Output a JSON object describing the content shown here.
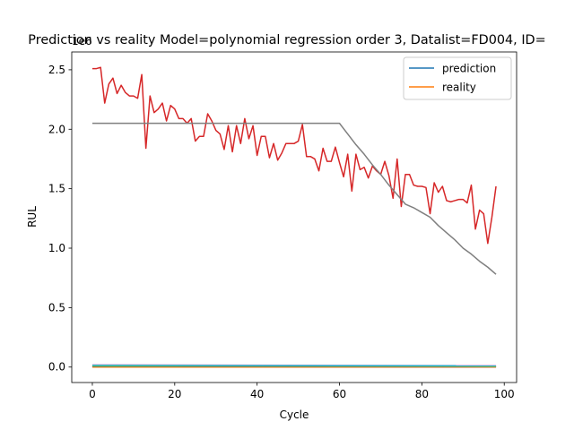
{
  "chart_data": {
    "type": "line",
    "title": "Prediction vs reality Model=polynomial regression order 3, Datalist=FD004, ID=",
    "xlabel": "Cycle",
    "ylabel": "RUL",
    "offset_label": "1e6",
    "xlim": [
      -5,
      103
    ],
    "ylim": [
      -0.13,
      2.65
    ],
    "xticks": [
      0,
      20,
      40,
      60,
      80,
      100
    ],
    "yticks": [
      0.0,
      0.5,
      1.0,
      1.5,
      2.0,
      2.5
    ],
    "xtick_labels": [
      "0",
      "20",
      "40",
      "60",
      "80",
      "100"
    ],
    "ytick_labels": [
      "0.0",
      "0.5",
      "1.0",
      "1.5",
      "2.0",
      "2.5"
    ],
    "legend": {
      "placement": "upper right",
      "entries": [
        {
          "name": "prediction",
          "color": "#1f77b4"
        },
        {
          "name": "reality",
          "color": "#ff7f0e"
        }
      ]
    },
    "series": [
      {
        "color": "#d62728",
        "x": [
          0,
          1,
          2,
          3,
          4,
          5,
          6,
          7,
          8,
          9,
          10,
          11,
          12,
          13,
          14,
          15,
          16,
          17,
          18,
          19,
          20,
          21,
          22,
          23,
          24,
          25,
          26,
          27,
          28,
          29,
          30,
          31,
          32,
          33,
          34,
          35,
          36,
          37,
          38,
          39,
          40,
          41,
          42,
          43,
          44,
          45,
          46,
          47,
          48,
          49,
          50,
          51,
          52,
          53,
          54,
          55,
          56,
          57,
          58,
          59,
          60,
          61,
          62,
          63,
          64,
          65,
          66,
          67,
          68,
          69,
          70,
          71,
          72,
          73,
          74,
          75,
          76,
          77,
          78,
          79,
          80,
          81,
          82,
          83,
          84,
          85,
          86,
          87,
          88,
          89,
          90,
          91,
          92,
          93,
          94,
          95,
          96,
          97,
          98
        ],
        "y": [
          2.51,
          2.51,
          2.52,
          2.22,
          2.38,
          2.43,
          2.3,
          2.37,
          2.31,
          2.28,
          2.28,
          2.26,
          2.46,
          1.84,
          2.28,
          2.14,
          2.17,
          2.22,
          2.07,
          2.2,
          2.17,
          2.09,
          2.09,
          2.05,
          2.09,
          1.9,
          1.94,
          1.94,
          2.13,
          2.07,
          1.99,
          1.96,
          1.83,
          2.03,
          1.81,
          2.03,
          1.88,
          2.09,
          1.92,
          2.03,
          1.78,
          1.94,
          1.94,
          1.76,
          1.88,
          1.74,
          1.8,
          1.88,
          1.88,
          1.88,
          1.9,
          2.04,
          1.77,
          1.77,
          1.75,
          1.65,
          1.84,
          1.73,
          1.73,
          1.85,
          1.72,
          1.6,
          1.79,
          1.48,
          1.79,
          1.66,
          1.68,
          1.59,
          1.69,
          1.65,
          1.62,
          1.73,
          1.61,
          1.42,
          1.75,
          1.35,
          1.62,
          1.62,
          1.53,
          1.52,
          1.52,
          1.51,
          1.29,
          1.55,
          1.47,
          1.52,
          1.4,
          1.39,
          1.4,
          1.41,
          1.41,
          1.38,
          1.53,
          1.16,
          1.32,
          1.29,
          1.04,
          1.26,
          1.52
        ]
      },
      {
        "color": "#7f7f7f",
        "x": [
          0,
          60,
          62,
          64,
          66,
          68,
          70,
          72,
          74,
          76,
          78,
          80,
          82,
          84,
          86,
          88,
          90,
          92,
          94,
          96,
          98
        ],
        "y": [
          2.05,
          2.05,
          1.96,
          1.87,
          1.79,
          1.7,
          1.62,
          1.53,
          1.45,
          1.37,
          1.34,
          1.3,
          1.26,
          1.19,
          1.13,
          1.07,
          1.0,
          0.95,
          0.89,
          0.84,
          0.78
        ]
      },
      {
        "color": "#1f77b4",
        "x": [
          0,
          98
        ],
        "y": [
          0.003,
          0.003
        ]
      },
      {
        "color": "#ff7f0e",
        "x": [
          0,
          98
        ],
        "y": [
          0.0,
          0.0
        ]
      },
      {
        "color": "#2ca02c",
        "x": [
          0,
          98
        ],
        "y": [
          0.006,
          0.004
        ]
      },
      {
        "color": "#9467bd",
        "x": [
          0,
          98
        ],
        "y": [
          0.012,
          0.008
        ]
      },
      {
        "color": "#8c564b",
        "x": [
          0,
          98
        ],
        "y": [
          0.005,
          0.002
        ]
      },
      {
        "color": "#e377c2",
        "x": [
          0,
          98
        ],
        "y": [
          0.018,
          0.012
        ]
      },
      {
        "color": "#bcbd22",
        "x": [
          0,
          98
        ],
        "y": [
          0.009,
          0.006
        ]
      },
      {
        "color": "#17becf",
        "x": [
          0,
          98
        ],
        "y": [
          0.014,
          0.01
        ]
      }
    ]
  }
}
